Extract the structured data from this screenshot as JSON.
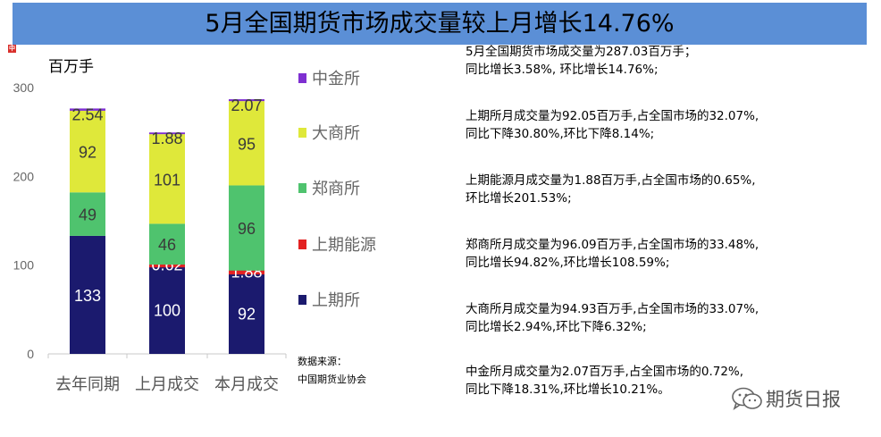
{
  "title": "5月全国期货市场成交量较上月增长14.76%",
  "brand_mark": "中",
  "colors": {
    "title_bg": "#5b8fd6",
    "中金所": "#7e2fd1",
    "大商所": "#dfe83a",
    "郑商所": "#4fc36e",
    "上期能源": "#e32222",
    "上期所": "#1b1a6e"
  },
  "chart_data": {
    "type": "bar",
    "stacked": true,
    "unit_label": "百万手",
    "categories": [
      "去年同期",
      "上月成交",
      "本月成交"
    ],
    "y_ticks": [
      "0",
      "100",
      "200",
      "300"
    ],
    "ylim": [
      0,
      300
    ],
    "series": [
      {
        "name": "上期所",
        "values": [
          133,
          100,
          92
        ],
        "labels": [
          "133",
          "100",
          "92"
        ]
      },
      {
        "name": "上期能源",
        "values": [
          0,
          0.62,
          1.88
        ],
        "labels": [
          "",
          "0.62",
          "1.88"
        ]
      },
      {
        "name": "郑商所",
        "values": [
          49,
          46,
          96
        ],
        "labels": [
          "49",
          "46",
          "96"
        ]
      },
      {
        "name": "大商所",
        "values": [
          92,
          101,
          95
        ],
        "labels": [
          "92",
          "101",
          "95"
        ]
      },
      {
        "name": "中金所",
        "values": [
          2.54,
          1.88,
          2.07
        ],
        "labels": [
          "2.54",
          "1.88",
          "2.07"
        ]
      }
    ],
    "legend": [
      "中金所",
      "大商所",
      "郑商所",
      "上期能源",
      "上期所"
    ],
    "legend_position": "right",
    "grid": false,
    "source_lines": [
      "数据来源：",
      "中国期货业协会"
    ]
  },
  "notes": [
    [
      "5月全国期货市场成交量为287.03百万手；",
      "同比增长3.58%, 环比增长14.76%;"
    ],
    [
      "上期所月成交量为92.05百万手,占全国市场的32.07%,",
      "同比下降30.80%,环比下降8.14%;"
    ],
    [
      "上期能源月成交量为1.88百万手,占全国市场的0.65%,",
      "环比增长201.53%;"
    ],
    [
      "郑商所月成交量为96.09百万手,占全国市场的33.48%,",
      "同比增长94.82%,环比增长108.59%;"
    ],
    [
      "大商所月成交量为94.93百万手,占全国市场的33.07%,",
      "同比增长2.94%,环比下降6.32%;"
    ],
    [
      "中金所月成交量为2.07百万手,占全国市场的0.72%,",
      "同比下降18.31%,环比增长10.21%。"
    ]
  ],
  "watermark": {
    "icon": "wechat-icon",
    "text": "期货日报"
  }
}
